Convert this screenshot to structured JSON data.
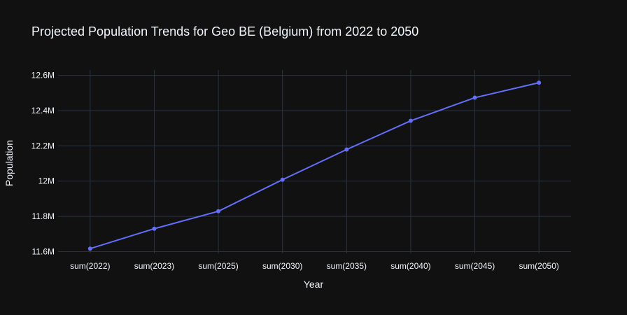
{
  "chart_data": {
    "type": "line",
    "title": "Projected Population Trends for Geo BE (Belgium) from 2022 to 2050",
    "xlabel": "Year",
    "ylabel": "Population",
    "categories": [
      "sum(2022)",
      "sum(2023)",
      "sum(2025)",
      "sum(2030)",
      "sum(2035)",
      "sum(2040)",
      "sum(2045)",
      "sum(2050)"
    ],
    "series": [
      {
        "values": [
          11617000,
          11730000,
          11829000,
          12008000,
          12179000,
          12342000,
          12473000,
          12558000
        ],
        "color": "#636efa"
      }
    ],
    "ylim": [
      11590000,
      12630000
    ],
    "yticks": [
      11600000,
      11800000,
      12000000,
      12200000,
      12400000,
      12600000
    ],
    "ytick_labels": [
      "11.6M",
      "11.8M",
      "12M",
      "12.2M",
      "12.4M",
      "12.6M"
    ],
    "grid": true,
    "legend": "none",
    "colors": {
      "background": "#111111",
      "grid": "#283442",
      "text": "#f2f5fa"
    }
  }
}
